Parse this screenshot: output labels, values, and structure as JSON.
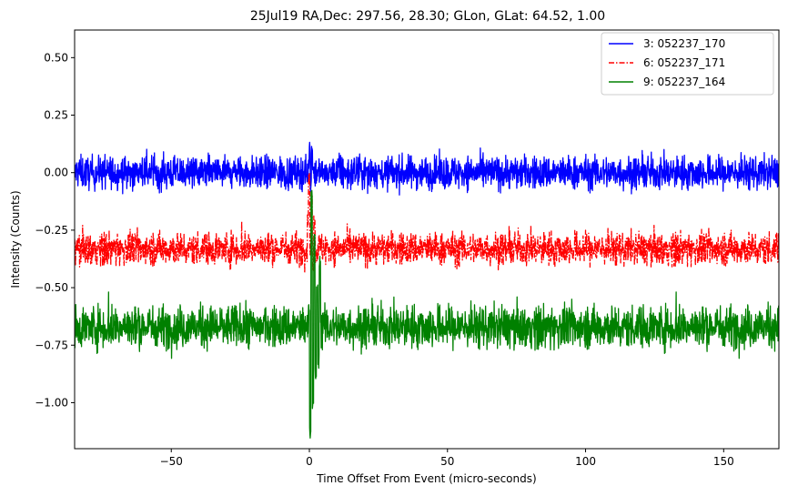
{
  "chart_data": {
    "type": "line",
    "title": "25Jul19 RA,Dec:  297.56,  28.30; GLon, GLat:   64.52,   1.00",
    "xlabel": "Time Offset From Event (micro-seconds)",
    "ylabel": "Intensity (Counts)",
    "xlim": [
      -85,
      170
    ],
    "ylim": [
      -1.2,
      0.62
    ],
    "x_ticks": [
      -50,
      0,
      50,
      100,
      150
    ],
    "x_tick_labels": [
      "−50",
      "0",
      "50",
      "100",
      "150"
    ],
    "y_ticks": [
      0.5,
      0.25,
      0.0,
      -0.25,
      -0.5,
      -0.75,
      -1.0
    ],
    "y_tick_labels": [
      "0.50",
      "0.25",
      "0.00",
      "−0.25",
      "−0.50",
      "−0.75",
      "−1.00"
    ],
    "grid": false,
    "legend_position": "top-right",
    "x_step": 0.1,
    "series": [
      {
        "name": "3: 052237_170",
        "color": "#0000ff",
        "style": "solid",
        "baseline": 0.0,
        "noise_amplitude": 0.035,
        "spike": {
          "x_start": -0.5,
          "x_end": 1.5,
          "values": [
            0.05,
            0.12,
            -0.05,
            0.1,
            0.02
          ]
        }
      },
      {
        "name": "6: 052237_171",
        "color": "#ff0000",
        "style": "dashdot",
        "baseline": -0.33,
        "noise_amplitude": 0.035,
        "spike": {
          "x_start": -0.8,
          "x_end": 2.0,
          "values": [
            -0.2,
            -0.02,
            -0.35,
            -0.1,
            -0.4,
            -0.22
          ]
        }
      },
      {
        "name": "9: 052237_164",
        "color": "#008000",
        "style": "solid",
        "baseline": -0.67,
        "noise_amplitude": 0.045,
        "spike": {
          "x_start": -0.5,
          "x_end": 4.0,
          "values": [
            -0.6,
            -1.12,
            -0.1,
            -1.0,
            -0.3,
            -0.88,
            -0.5,
            -0.82,
            -0.4
          ]
        }
      }
    ]
  }
}
